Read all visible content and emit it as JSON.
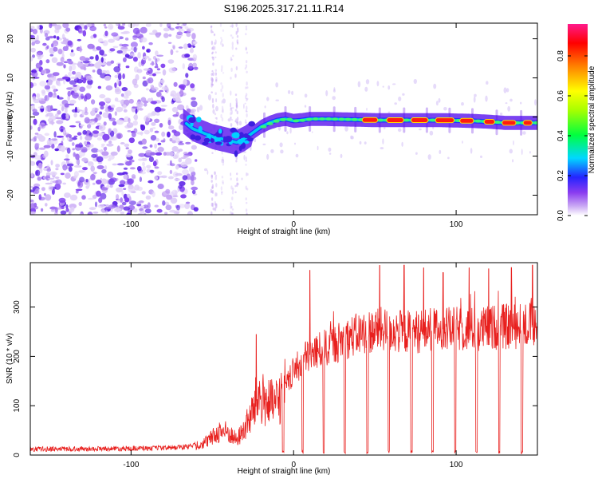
{
  "title": "S196.2025.317.21.11.R14",
  "colors": {
    "snr_line": "#e8201e",
    "noise": "#9d6cf0",
    "axis": "#000000"
  },
  "colorbar": {
    "label": "Normalized spectral amplitude",
    "ticks": [
      {
        "value": 0.0,
        "label": "0.0"
      },
      {
        "value": 0.2,
        "label": "0.2"
      },
      {
        "value": 0.4,
        "label": "0.4"
      },
      {
        "value": 0.6,
        "label": "0.6"
      },
      {
        "value": 0.8,
        "label": "0.8"
      }
    ],
    "range": [
      0,
      0.96
    ]
  },
  "chart_data": [
    {
      "type": "heatmap",
      "title": "S196.2025.317.21.11.R14",
      "xlabel": "Height of straight line (km)",
      "ylabel": "Frequency (Hz)",
      "xlim": [
        -162,
        150
      ],
      "ylim": [
        -25,
        24
      ],
      "x_ticks": [
        {
          "value": -100,
          "label": "-100"
        },
        {
          "value": 0,
          "label": "0"
        },
        {
          "value": 100,
          "label": "100"
        }
      ],
      "y_ticks": [
        {
          "value": -20,
          "label": "-20"
        },
        {
          "value": -10,
          "label": "-10"
        },
        {
          "value": 0,
          "label": "0"
        },
        {
          "value": 10,
          "label": "10"
        },
        {
          "value": 20,
          "label": "20"
        }
      ],
      "track": {
        "x": [
          -68,
          -62,
          -56,
          -50,
          -45,
          -40,
          -35,
          -30,
          -25,
          -20,
          -15,
          -10,
          -5,
          0,
          5,
          10,
          20,
          30,
          40,
          50,
          60,
          70,
          80,
          90,
          100,
          110,
          120,
          130,
          140,
          150
        ],
        "y": [
          -1,
          -3,
          -4,
          -5,
          -5.5,
          -6,
          -6.5,
          -5.5,
          -4,
          -2.5,
          -1.5,
          -0.8,
          -0.5,
          -1,
          -0.8,
          -0.5,
          -0.5,
          -0.6,
          -0.7,
          -0.8,
          -0.8,
          -0.8,
          -0.8,
          -0.8,
          -0.9,
          -1,
          -1.2,
          -1.5,
          -1.5,
          -1.5
        ]
      },
      "hot_segments": [
        [
          42,
          52
        ],
        [
          57,
          68
        ],
        [
          72,
          83
        ],
        [
          87,
          99
        ],
        [
          102,
          111
        ],
        [
          117,
          124
        ],
        [
          128,
          137
        ],
        [
          141,
          147
        ]
      ]
    },
    {
      "type": "line",
      "xlabel": "Height of straight line (km)",
      "ylabel": "SNR (10 * v/v)",
      "xlim": [
        -162,
        150
      ],
      "ylim": [
        0,
        390
      ],
      "x_ticks": [
        {
          "value": -100,
          "label": "-100"
        },
        {
          "value": 0,
          "label": "0"
        },
        {
          "value": 100,
          "label": "100"
        }
      ],
      "y_ticks": [
        {
          "value": 0,
          "label": "0"
        },
        {
          "value": 100,
          "label": "100"
        },
        {
          "value": 200,
          "label": "200"
        },
        {
          "value": 300,
          "label": "300"
        }
      ],
      "envelope": {
        "x": [
          -162,
          -120,
          -80,
          -65,
          -55,
          -50,
          -45,
          -40,
          -35,
          -30,
          -26,
          -22,
          -18,
          -12,
          -8,
          -5,
          0,
          3,
          8,
          15,
          25,
          35,
          45,
          55,
          65,
          75,
          85,
          95,
          105,
          115,
          125,
          135,
          145,
          150
        ],
        "y": [
          10,
          11,
          12,
          15,
          25,
          35,
          50,
          45,
          30,
          55,
          80,
          120,
          110,
          100,
          120,
          135,
          170,
          180,
          200,
          210,
          225,
          240,
          250,
          255,
          250,
          250,
          255,
          255,
          255,
          255,
          260,
          260,
          265,
          260
        ]
      },
      "dropouts": [
        [
          -7,
          -6
        ],
        [
          5,
          6
        ],
        [
          18,
          19
        ],
        [
          31,
          32
        ],
        [
          45,
          46
        ],
        [
          58,
          59
        ],
        [
          72,
          73
        ],
        [
          85,
          86
        ],
        [
          99,
          100
        ],
        [
          112,
          113
        ],
        [
          126,
          127
        ],
        [
          140,
          141
        ]
      ],
      "spikes": [
        {
          "x": -23,
          "y": 245
        },
        {
          "x": 10,
          "y": 375
        },
        {
          "x": 53,
          "y": 385
        },
        {
          "x": 68,
          "y": 385
        },
        {
          "x": 80,
          "y": 380
        },
        {
          "x": 92,
          "y": 370
        },
        {
          "x": 108,
          "y": 380
        },
        {
          "x": 120,
          "y": 378
        },
        {
          "x": 134,
          "y": 380
        },
        {
          "x": 147,
          "y": 385
        }
      ]
    }
  ]
}
